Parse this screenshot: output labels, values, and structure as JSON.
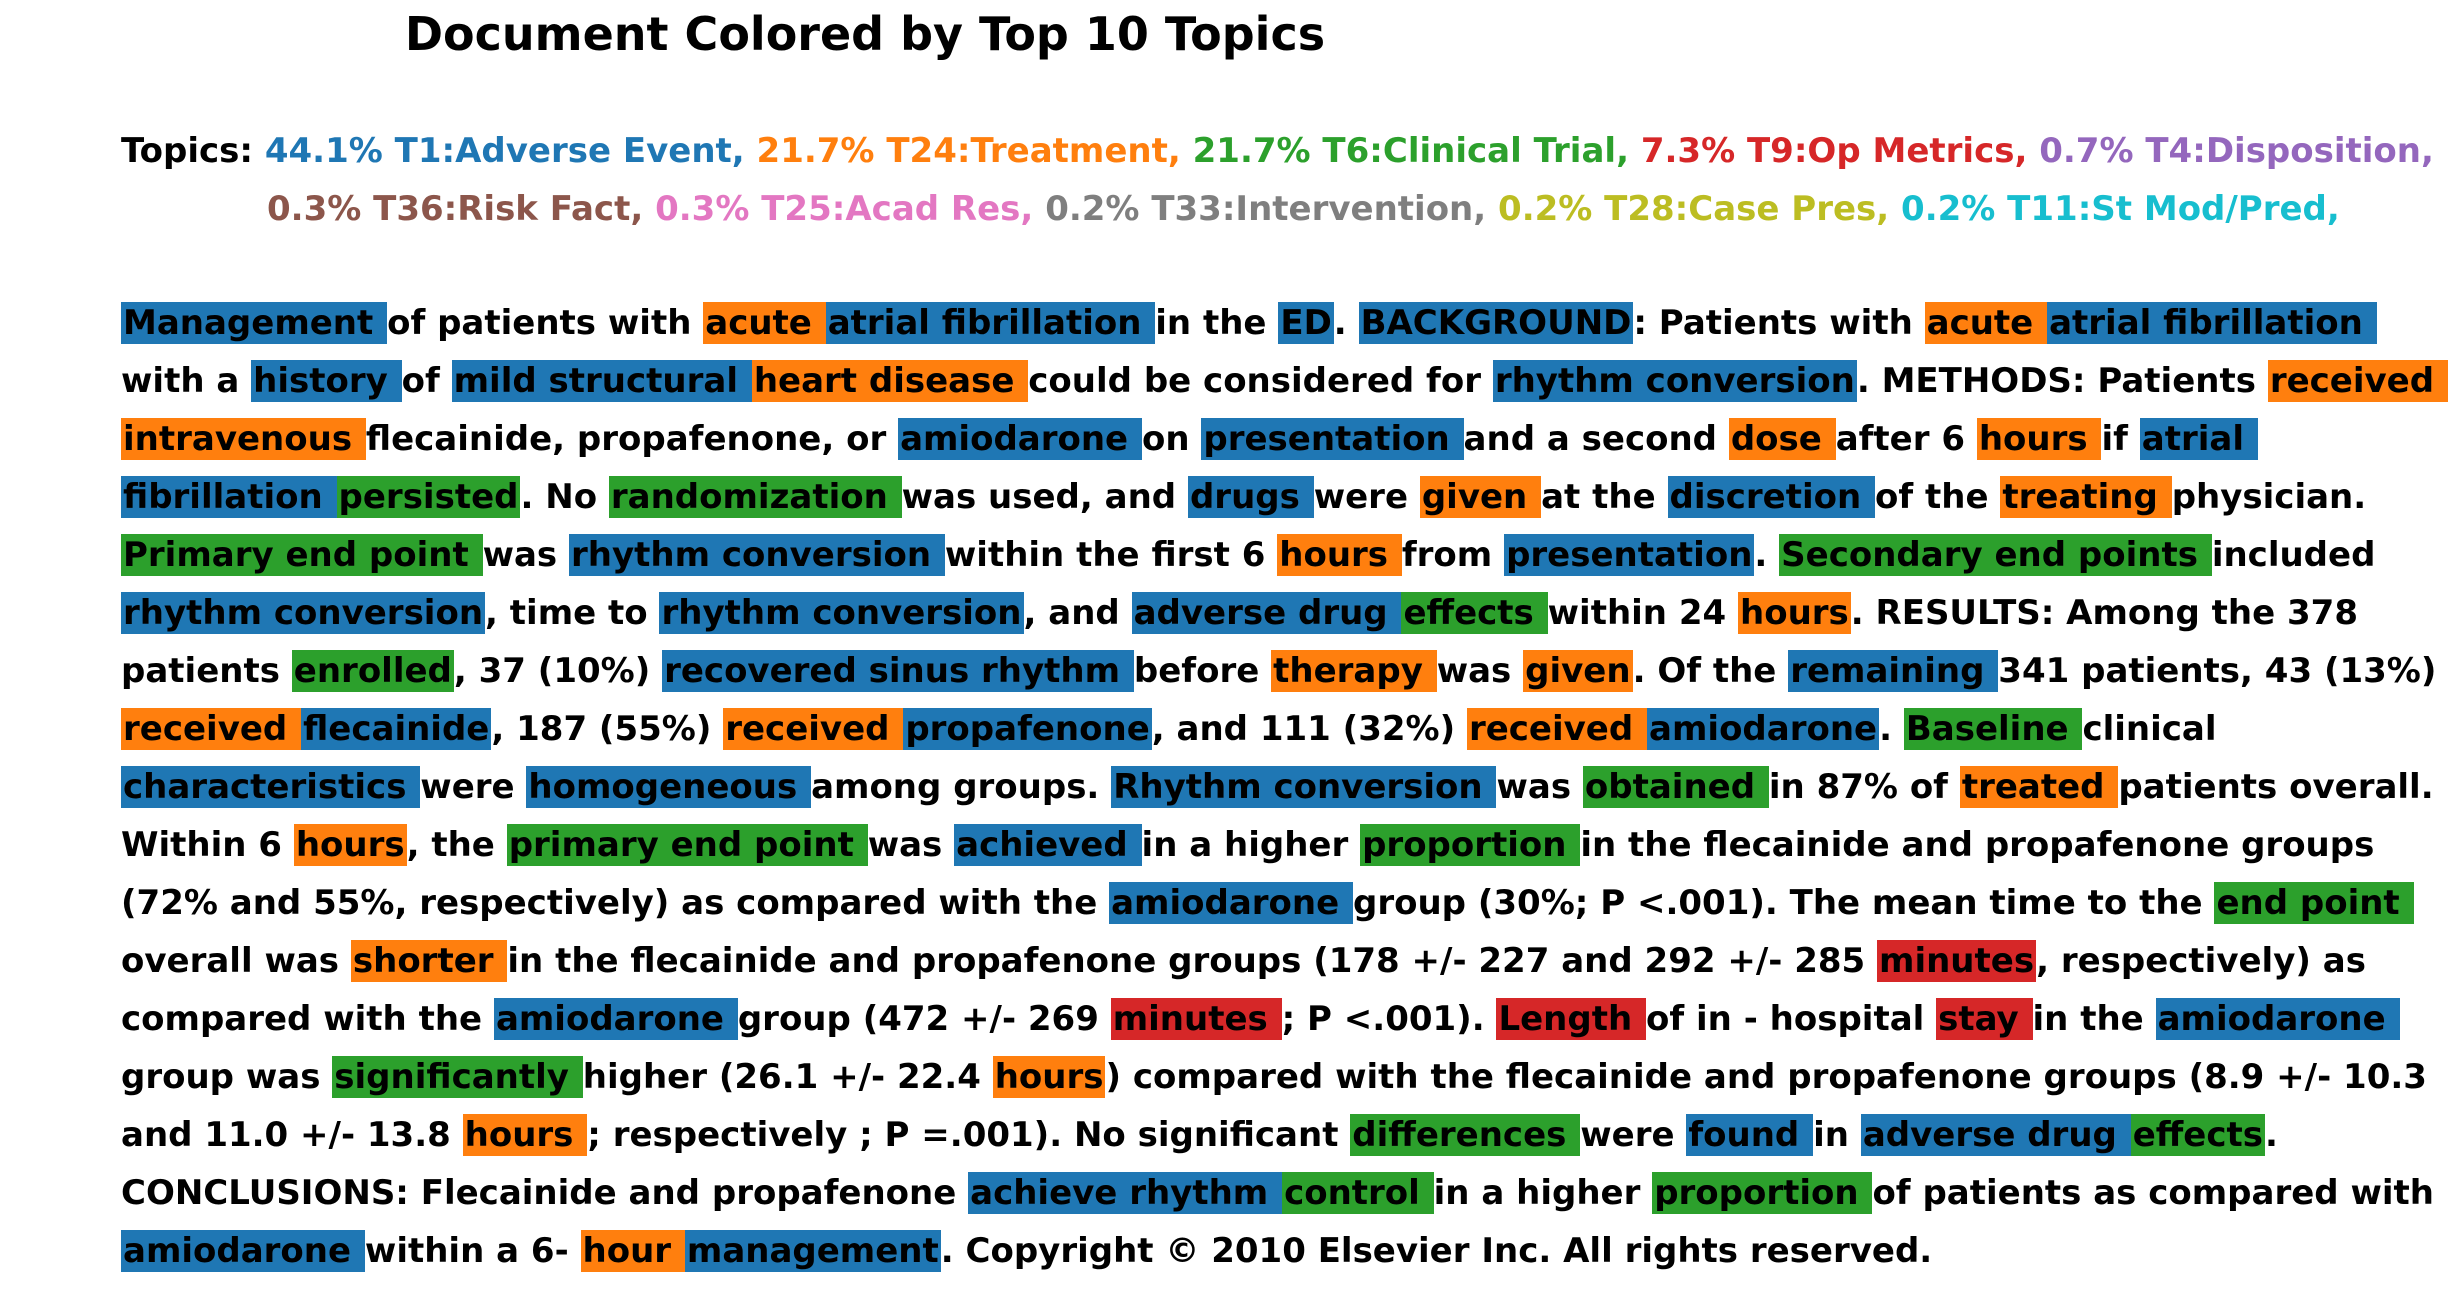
{
  "title": "Document Colored by Top 10 Topics",
  "colors": {
    "T1": "#1f77b4",
    "T24": "#ff7f0e",
    "T6": "#2ca02c",
    "T9": "#d62728",
    "T4": "#9467bd",
    "T36": "#8c564b",
    "T25": "#e377c2",
    "T33": "#7f7f7f",
    "T28": "#bcbd22",
    "T11": "#17becf"
  },
  "topics_label": "Topics:",
  "topics_rows": [
    [
      {
        "text": "44.1% T1:Adverse Event",
        "topic": "T1"
      },
      {
        "text": "21.7% T24:Treatment",
        "topic": "T24"
      },
      {
        "text": "21.7% T6:Clinical Trial",
        "topic": "T6"
      },
      {
        "text": "7.3% T9:Op Metrics",
        "topic": "T9"
      },
      {
        "text": "0.7% T4:Disposition",
        "topic": "T4"
      }
    ],
    [
      {
        "text": "0.3% T36:Risk Fact",
        "topic": "T36"
      },
      {
        "text": "0.3% T25:Acad Res",
        "topic": "T25"
      },
      {
        "text": "0.2% T33:Intervention",
        "topic": "T33"
      },
      {
        "text": "0.2% T28:Case Pres",
        "topic": "T28"
      },
      {
        "text": "0.2% T11:St Mod/Pred",
        "topic": "T11"
      }
    ]
  ],
  "document_lines": [
    [
      {
        "t": "Management ",
        "c": "T1"
      },
      {
        "t": "of patients with "
      },
      {
        "t": "acute ",
        "c": "T24"
      },
      {
        "t": "atrial fibrillation ",
        "c": "T1"
      },
      {
        "t": "in the "
      },
      {
        "t": "ED",
        "c": "T1"
      },
      {
        "t": ". "
      },
      {
        "t": "BACKGROUND",
        "c": "T1"
      },
      {
        "t": ": Patients with "
      },
      {
        "t": "acute ",
        "c": "T24"
      },
      {
        "t": "atrial fibrillation ",
        "c": "T1"
      }
    ],
    [
      {
        "t": "with a "
      },
      {
        "t": "history ",
        "c": "T1"
      },
      {
        "t": "of "
      },
      {
        "t": "mild structural ",
        "c": "T1"
      },
      {
        "t": "heart disease ",
        "c": "T24"
      },
      {
        "t": "could be considered for "
      },
      {
        "t": "rhythm conversion",
        "c": "T1"
      },
      {
        "t": ". METHODS: Patients "
      },
      {
        "t": "received ",
        "c": "T24"
      }
    ],
    [
      {
        "t": "intravenous ",
        "c": "T24"
      },
      {
        "t": "flecainide, propafenone, or "
      },
      {
        "t": "amiodarone ",
        "c": "T1"
      },
      {
        "t": "on "
      },
      {
        "t": "presentation ",
        "c": "T1"
      },
      {
        "t": "and a second "
      },
      {
        "t": "dose ",
        "c": "T24"
      },
      {
        "t": "after 6 "
      },
      {
        "t": "hours ",
        "c": "T24"
      },
      {
        "t": "if "
      },
      {
        "t": "atrial ",
        "c": "T1"
      }
    ],
    [
      {
        "t": "fibrillation ",
        "c": "T1"
      },
      {
        "t": "persisted",
        "c": "T6"
      },
      {
        "t": ". No "
      },
      {
        "t": "randomization ",
        "c": "T6"
      },
      {
        "t": "was used, and "
      },
      {
        "t": "drugs ",
        "c": "T1"
      },
      {
        "t": "were "
      },
      {
        "t": "given ",
        "c": "T24"
      },
      {
        "t": "at the "
      },
      {
        "t": "discretion ",
        "c": "T1"
      },
      {
        "t": "of the "
      },
      {
        "t": "treating ",
        "c": "T24"
      },
      {
        "t": "physician."
      }
    ],
    [
      {
        "t": "Primary end point ",
        "c": "T6"
      },
      {
        "t": "was "
      },
      {
        "t": "rhythm conversion ",
        "c": "T1"
      },
      {
        "t": "within the first 6 "
      },
      {
        "t": "hours ",
        "c": "T24"
      },
      {
        "t": "from "
      },
      {
        "t": "presentation",
        "c": "T1"
      },
      {
        "t": ". "
      },
      {
        "t": "Secondary end points ",
        "c": "T6"
      },
      {
        "t": "included"
      }
    ],
    [
      {
        "t": "rhythm conversion",
        "c": "T1"
      },
      {
        "t": ", time to "
      },
      {
        "t": "rhythm conversion",
        "c": "T1"
      },
      {
        "t": ", and "
      },
      {
        "t": "adverse drug ",
        "c": "T1"
      },
      {
        "t": "effects ",
        "c": "T6"
      },
      {
        "t": "within 24 "
      },
      {
        "t": "hours",
        "c": "T24"
      },
      {
        "t": ". RESULTS: Among the 378"
      }
    ],
    [
      {
        "t": "patients "
      },
      {
        "t": "enrolled",
        "c": "T6"
      },
      {
        "t": ", 37 (10%) "
      },
      {
        "t": "recovered sinus rhythm ",
        "c": "T1"
      },
      {
        "t": "before "
      },
      {
        "t": "therapy ",
        "c": "T24"
      },
      {
        "t": "was "
      },
      {
        "t": "given",
        "c": "T24"
      },
      {
        "t": ". Of the "
      },
      {
        "t": "remaining ",
        "c": "T1"
      },
      {
        "t": "341 patients, 43 (13%)"
      }
    ],
    [
      {
        "t": "received ",
        "c": "T24"
      },
      {
        "t": "flecainide",
        "c": "T1"
      },
      {
        "t": ", 187 (55%) "
      },
      {
        "t": "received ",
        "c": "T24"
      },
      {
        "t": "propafenone",
        "c": "T1"
      },
      {
        "t": ", and 111 (32%) "
      },
      {
        "t": "received ",
        "c": "T24"
      },
      {
        "t": "amiodarone",
        "c": "T1"
      },
      {
        "t": ". "
      },
      {
        "t": "Baseline ",
        "c": "T6"
      },
      {
        "t": "clinical"
      }
    ],
    [
      {
        "t": "characteristics ",
        "c": "T1"
      },
      {
        "t": "were "
      },
      {
        "t": "homogeneous ",
        "c": "T1"
      },
      {
        "t": "among groups. "
      },
      {
        "t": "Rhythm conversion ",
        "c": "T1"
      },
      {
        "t": "was "
      },
      {
        "t": "obtained ",
        "c": "T6"
      },
      {
        "t": "in 87% of "
      },
      {
        "t": "treated ",
        "c": "T24"
      },
      {
        "t": "patients overall."
      }
    ],
    [
      {
        "t": "Within 6 "
      },
      {
        "t": "hours",
        "c": "T24"
      },
      {
        "t": ", the "
      },
      {
        "t": "primary end point ",
        "c": "T6"
      },
      {
        "t": "was "
      },
      {
        "t": "achieved ",
        "c": "T1"
      },
      {
        "t": "in a higher "
      },
      {
        "t": "proportion ",
        "c": "T6"
      },
      {
        "t": "in the flecainide and propafenone groups"
      }
    ],
    [
      {
        "t": "(72% and 55%, respectively) as compared with the "
      },
      {
        "t": "amiodarone ",
        "c": "T1"
      },
      {
        "t": "group (30%; P <.001). The mean time to the "
      },
      {
        "t": "end point ",
        "c": "T6"
      }
    ],
    [
      {
        "t": "overall was "
      },
      {
        "t": "shorter ",
        "c": "T24"
      },
      {
        "t": "in the flecainide and propafenone groups (178 +/- 227 and 292 +/- 285 "
      },
      {
        "t": "minutes",
        "c": "T9"
      },
      {
        "t": ", respectively) as"
      }
    ],
    [
      {
        "t": "compared with the "
      },
      {
        "t": "amiodarone ",
        "c": "T1"
      },
      {
        "t": "group (472 +/- 269 "
      },
      {
        "t": "minutes ",
        "c": "T9"
      },
      {
        "t": "; P <.001). "
      },
      {
        "t": "Length ",
        "c": "T9"
      },
      {
        "t": "of in - hospital "
      },
      {
        "t": "stay ",
        "c": "T9"
      },
      {
        "t": "in the "
      },
      {
        "t": "amiodarone ",
        "c": "T1"
      }
    ],
    [
      {
        "t": "group was "
      },
      {
        "t": "significantly ",
        "c": "T6"
      },
      {
        "t": "higher (26.1 +/- 22.4 "
      },
      {
        "t": "hours",
        "c": "T24"
      },
      {
        "t": ") compared with the flecainide and propafenone groups (8.9 +/- 10.3"
      }
    ],
    [
      {
        "t": "and 11.0 +/- 13.8 "
      },
      {
        "t": "hours ",
        "c": "T24"
      },
      {
        "t": "; respectively ; P =.001). No significant "
      },
      {
        "t": "differences ",
        "c": "T6"
      },
      {
        "t": "were "
      },
      {
        "t": "found ",
        "c": "T1"
      },
      {
        "t": "in "
      },
      {
        "t": "adverse drug ",
        "c": "T1"
      },
      {
        "t": "effects",
        "c": "T6"
      },
      {
        "t": "."
      }
    ],
    [
      {
        "t": "CONCLUSIONS: Flecainide and propafenone "
      },
      {
        "t": "achieve rhythm ",
        "c": "T1"
      },
      {
        "t": "control ",
        "c": "T6"
      },
      {
        "t": "in a higher "
      },
      {
        "t": "proportion ",
        "c": "T6"
      },
      {
        "t": "of patients as compared with"
      }
    ],
    [
      {
        "t": "amiodarone ",
        "c": "T1"
      },
      {
        "t": "within a 6- "
      },
      {
        "t": "hour ",
        "c": "T24"
      },
      {
        "t": "management",
        "c": "T1"
      },
      {
        "t": ". Copyright © 2010 Elsevier Inc. All rights reserved."
      }
    ]
  ]
}
